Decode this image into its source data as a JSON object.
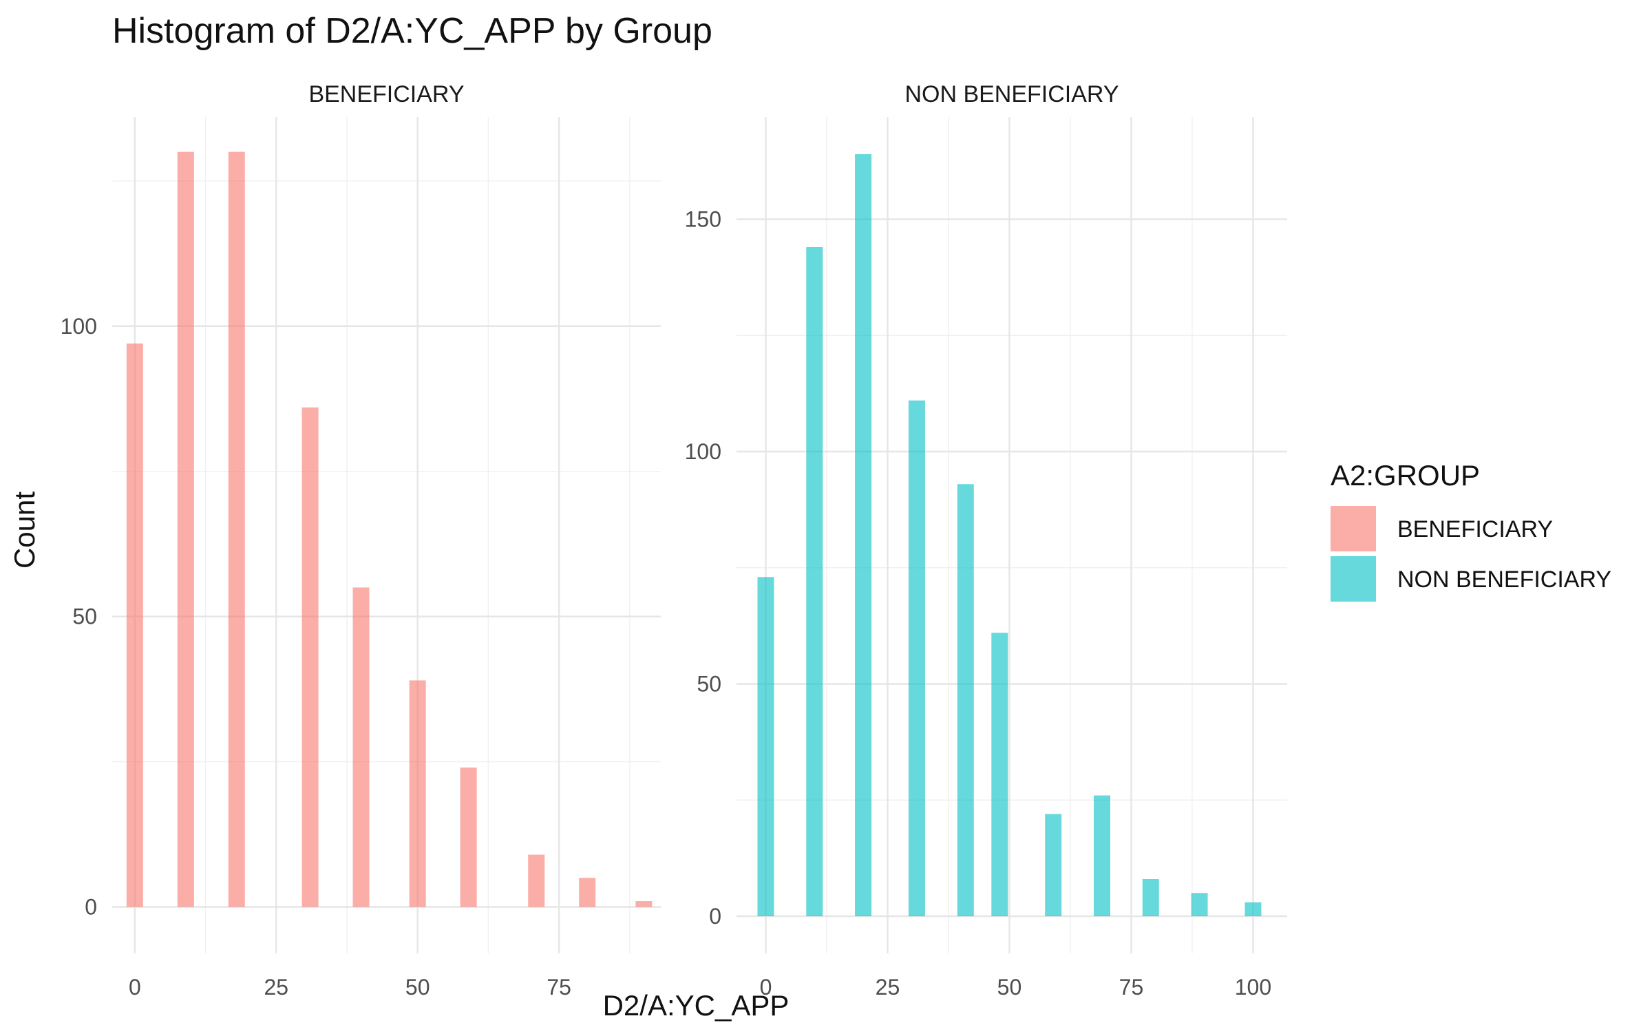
{
  "chart_data": {
    "type": "bar",
    "title": "Histogram of D2/A:YC_APP by Group",
    "xlabel": "D2/A:YC_APP",
    "ylabel": "Count",
    "grid": true,
    "legend": {
      "title": "A2:GROUP",
      "placement": "right",
      "entries": [
        {
          "label": "BENEFICIARY",
          "color": "#F8766D"
        },
        {
          "label": "NON BENEFICIARY",
          "color": "#00BFC4"
        }
      ]
    },
    "facets": [
      {
        "name": "BENEFICIARY",
        "color": "#F8766D",
        "xlim": [
          -4,
          93
        ],
        "ylim": [
          -8,
          136
        ],
        "xticks": [
          0,
          25,
          50,
          75
        ],
        "yticks": [
          0,
          50,
          100
        ],
        "x": [
          0,
          9,
          18,
          31,
          40,
          50,
          59,
          71,
          80,
          90
        ],
        "values": [
          97,
          130,
          130,
          86,
          55,
          39,
          24,
          9,
          5,
          1
        ]
      },
      {
        "name": "NON BENEFICIARY",
        "color": "#00BFC4",
        "xlim": [
          -6,
          107
        ],
        "ylim": [
          -8,
          172
        ],
        "xticks": [
          0,
          25,
          50,
          75,
          100
        ],
        "yticks": [
          0,
          50,
          100,
          150
        ],
        "x": [
          0,
          10,
          20,
          31,
          41,
          48,
          59,
          69,
          79,
          89,
          100
        ],
        "values": [
          73,
          144,
          164,
          111,
          93,
          61,
          22,
          26,
          8,
          5,
          3
        ]
      }
    ]
  }
}
